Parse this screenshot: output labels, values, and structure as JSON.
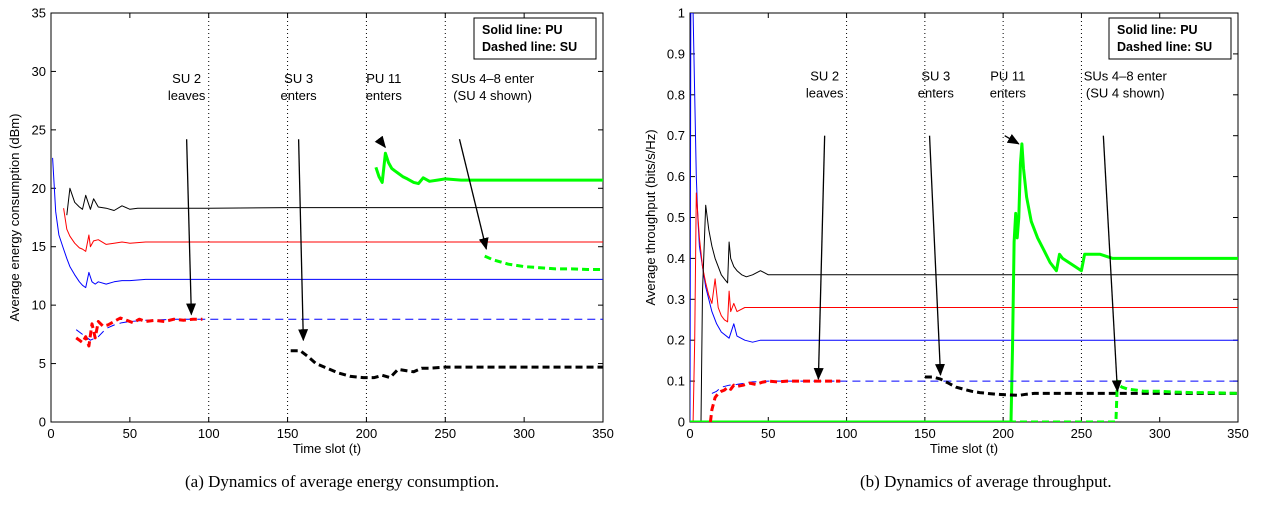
{
  "chart_data": [
    {
      "type": "line",
      "caption": "(a) Dynamics of average energy consumption.",
      "xlabel": "Time slot (t)",
      "ylabel": "Average energy consumption (dBm)",
      "xlim": [
        0,
        350
      ],
      "ylim": [
        0,
        35
      ],
      "xticks": [
        "0",
        "50",
        "100",
        "150",
        "200",
        "250",
        "300",
        "350"
      ],
      "yticks": [
        "0",
        "5",
        "10",
        "15",
        "20",
        "25",
        "30",
        "35"
      ],
      "grid": false,
      "legend": {
        "lines": [
          "Solid line: PU",
          "Dashed line: SU"
        ],
        "position": "top-right"
      },
      "event_lines_x": [
        100,
        150,
        200,
        250
      ],
      "annotations": [
        {
          "lines": [
            "SU 2",
            "leaves"
          ],
          "text_at": [
            86,
            29
          ],
          "arrow_from": [
            86,
            24.2
          ],
          "arrow_to": [
            89,
            9.2
          ]
        },
        {
          "lines": [
            "SU 3",
            "enters"
          ],
          "text_at": [
            157,
            29
          ],
          "arrow_from": [
            157,
            24.2
          ],
          "arrow_to": [
            160,
            7.0
          ]
        },
        {
          "lines": [
            "PU 11",
            "enters"
          ],
          "text_at": [
            211,
            29
          ],
          "arrow_from": [
            208,
            24.2
          ],
          "arrow_to": [
            212,
            23.5
          ]
        },
        {
          "lines": [
            "SUs 4–8 enter",
            "(SU 4 shown)"
          ],
          "text_at": [
            280,
            29
          ],
          "arrow_from": [
            259,
            24.2
          ],
          "arrow_to": [
            276,
            14.8
          ]
        }
      ],
      "series": [
        {
          "color": "#000000",
          "dashed": false,
          "width": 1,
          "x": [
            10,
            12,
            15,
            18,
            20,
            22,
            25,
            27,
            30,
            35,
            40,
            45,
            50,
            55,
            60,
            80,
            100,
            150,
            200,
            250,
            300,
            350
          ],
          "y": [
            17.7,
            20.0,
            18.8,
            18.4,
            18.2,
            19.4,
            18.2,
            19.1,
            18.4,
            18.3,
            18.1,
            18.5,
            18.2,
            18.3,
            18.3,
            18.3,
            18.3,
            18.35,
            18.35,
            18.35,
            18.35,
            18.35
          ]
        },
        {
          "color": "#ff0000",
          "dashed": false,
          "width": 1,
          "x": [
            8,
            10,
            12,
            15,
            18,
            20,
            22,
            24,
            25,
            27,
            30,
            35,
            40,
            45,
            50,
            60,
            80,
            100,
            150,
            200,
            250,
            300,
            350
          ],
          "y": [
            18.3,
            16.5,
            15.9,
            15.3,
            14.9,
            14.8,
            14.6,
            16.0,
            15.0,
            15.5,
            15.6,
            15.2,
            15.3,
            15.4,
            15.3,
            15.4,
            15.4,
            15.4,
            15.4,
            15.4,
            15.4,
            15.4,
            15.4
          ]
        },
        {
          "color": "#0000ff",
          "dashed": false,
          "width": 1,
          "x": [
            1,
            3,
            5,
            8,
            10,
            12,
            15,
            18,
            20,
            22,
            24,
            26,
            28,
            30,
            35,
            40,
            45,
            50,
            60,
            80,
            100,
            150,
            200,
            250,
            300,
            350
          ],
          "y": [
            22.6,
            18.0,
            16.0,
            14.8,
            14.0,
            13.3,
            12.6,
            12.0,
            11.7,
            11.5,
            12.8,
            12.0,
            11.8,
            12.0,
            11.8,
            12.0,
            12.1,
            12.1,
            12.2,
            12.2,
            12.2,
            12.2,
            12.2,
            12.2,
            12.2,
            12.2
          ]
        },
        {
          "color": "#0000ff",
          "dashed": true,
          "width": 1,
          "x": [
            16,
            20,
            25,
            30,
            35,
            40,
            45,
            50,
            60,
            70,
            80,
            90,
            100,
            150,
            200,
            250,
            300,
            350
          ],
          "y": [
            7.9,
            7.5,
            7.0,
            7.3,
            8.0,
            8.3,
            8.5,
            8.6,
            8.7,
            8.75,
            8.8,
            8.8,
            8.8,
            8.8,
            8.8,
            8.8,
            8.8,
            8.8
          ]
        },
        {
          "color": "#ff0000",
          "dashed": true,
          "width": 3,
          "x": [
            16,
            18,
            20,
            22,
            24,
            26,
            28,
            30,
            33,
            36,
            40,
            44,
            48,
            52,
            56,
            60,
            66,
            72,
            78,
            84,
            90,
            96
          ],
          "y": [
            7.2,
            7.0,
            6.8,
            7.3,
            6.5,
            8.4,
            7.2,
            8.6,
            8.2,
            8.3,
            8.6,
            8.9,
            8.7,
            8.5,
            8.8,
            8.6,
            8.7,
            8.6,
            8.8,
            8.7,
            8.8,
            8.8
          ]
        },
        {
          "color": "#000000",
          "dashed": true,
          "width": 3,
          "x": [
            152,
            158,
            163,
            168,
            175,
            182,
            190,
            198,
            205,
            210,
            215,
            220,
            225,
            230,
            235,
            240,
            250,
            260,
            280,
            300,
            320,
            350
          ],
          "y": [
            6.1,
            6.1,
            5.6,
            5.0,
            4.6,
            4.2,
            3.9,
            3.8,
            3.8,
            4.0,
            3.8,
            4.5,
            4.4,
            4.3,
            4.6,
            4.6,
            4.7,
            4.7,
            4.7,
            4.7,
            4.7,
            4.7
          ]
        },
        {
          "color": "#00ff00",
          "dashed": false,
          "width": 3,
          "x": [
            206,
            208,
            210,
            212,
            214,
            216,
            218,
            220,
            223,
            226,
            230,
            233,
            236,
            240,
            245,
            250,
            260,
            270,
            280,
            300,
            320,
            350
          ],
          "y": [
            21.8,
            21.0,
            20.5,
            23.0,
            22.2,
            21.7,
            21.5,
            21.3,
            21.0,
            20.8,
            20.5,
            20.4,
            20.9,
            20.6,
            20.7,
            20.8,
            20.7,
            20.7,
            20.7,
            20.7,
            20.7,
            20.7
          ]
        },
        {
          "color": "#00ff00",
          "dashed": true,
          "width": 3,
          "x": [
            275,
            280,
            285,
            290,
            295,
            300,
            310,
            320,
            330,
            340,
            350
          ],
          "y": [
            14.2,
            13.9,
            13.7,
            13.5,
            13.4,
            13.3,
            13.2,
            13.1,
            13.1,
            13.05,
            13.05
          ]
        }
      ]
    },
    {
      "type": "line",
      "caption": "(b) Dynamics of average throughput.",
      "xlabel": "Time slot (t)",
      "ylabel": "Average throughput (bits/s/Hz)",
      "xlim": [
        0,
        350
      ],
      "ylim": [
        0,
        1
      ],
      "xticks": [
        "0",
        "50",
        "100",
        "150",
        "200",
        "250",
        "300",
        "350"
      ],
      "yticks": [
        "0",
        "0.1",
        "0.2",
        "0.3",
        "0.4",
        "0.5",
        "0.6",
        "0.7",
        "0.8",
        "0.9",
        "1"
      ],
      "grid": false,
      "legend": {
        "lines": [
          "Solid line: PU",
          "Dashed line: SU"
        ],
        "position": "top-right"
      },
      "event_lines_x": [
        100,
        150,
        200,
        250
      ],
      "annotations": [
        {
          "lines": [
            "SU 2",
            "leaves"
          ],
          "text_at": [
            86,
            0.835
          ],
          "arrow_from": [
            86,
            0.7
          ],
          "arrow_to": [
            82,
            0.105
          ]
        },
        {
          "lines": [
            "SU 3",
            "enters"
          ],
          "text_at": [
            157,
            0.835
          ],
          "arrow_from": [
            153,
            0.7
          ],
          "arrow_to": [
            160,
            0.115
          ]
        },
        {
          "lines": [
            "PU 11",
            "enters"
          ],
          "text_at": [
            203,
            0.835
          ],
          "arrow_from": [
            201,
            0.7
          ],
          "arrow_to": [
            210,
            0.68
          ]
        },
        {
          "lines": [
            "SUs 4–8 enter",
            "(SU 4 shown)"
          ],
          "text_at": [
            278,
            0.835
          ],
          "arrow_from": [
            264,
            0.7
          ],
          "arrow_to": [
            273,
            0.075
          ]
        }
      ],
      "series": [
        {
          "color": "#0000ff",
          "dashed": false,
          "width": 1,
          "x": [
            0,
            0.5,
            2,
            3,
            4,
            5,
            6,
            8,
            10,
            14,
            17,
            20,
            25,
            28,
            30,
            35,
            40,
            45,
            50,
            60,
            80,
            100,
            150,
            200,
            250,
            300,
            350
          ],
          "y": [
            0,
            1.0,
            1.0,
            0.8,
            0.6,
            0.5,
            0.43,
            0.38,
            0.33,
            0.27,
            0.24,
            0.22,
            0.205,
            0.24,
            0.21,
            0.2,
            0.195,
            0.2,
            0.2,
            0.2,
            0.2,
            0.2,
            0.2,
            0.2,
            0.2,
            0.2,
            0.2
          ]
        },
        {
          "color": "#ff0000",
          "dashed": false,
          "width": 1,
          "x": [
            1,
            2,
            3,
            4,
            6,
            8,
            10,
            12,
            14,
            16,
            18,
            20,
            22,
            24,
            25,
            26,
            28,
            30,
            35,
            40,
            50,
            60,
            80,
            100,
            150,
            200,
            250,
            300,
            350
          ],
          "y": [
            0,
            0.0,
            0.2,
            0.56,
            0.45,
            0.38,
            0.34,
            0.31,
            0.29,
            0.35,
            0.28,
            0.26,
            0.25,
            0.245,
            0.32,
            0.27,
            0.29,
            0.27,
            0.28,
            0.28,
            0.28,
            0.28,
            0.28,
            0.28,
            0.28,
            0.28,
            0.28,
            0.28,
            0.28
          ]
        },
        {
          "color": "#000000",
          "dashed": false,
          "width": 1,
          "x": [
            7,
            8,
            10,
            12,
            14,
            16,
            18,
            20,
            22,
            24,
            25,
            26,
            28,
            30,
            33,
            36,
            40,
            45,
            50,
            60,
            80,
            100,
            150,
            200,
            250,
            300,
            350
          ],
          "y": [
            0,
            0.32,
            0.53,
            0.47,
            0.43,
            0.4,
            0.38,
            0.36,
            0.35,
            0.34,
            0.44,
            0.4,
            0.38,
            0.37,
            0.36,
            0.355,
            0.36,
            0.37,
            0.36,
            0.36,
            0.36,
            0.36,
            0.36,
            0.36,
            0.36,
            0.36,
            0.36
          ]
        },
        {
          "color": "#00ff00",
          "dashed": false,
          "width": 3,
          "x": [
            0,
            205,
            206,
            207,
            208,
            209,
            210,
            211,
            212,
            213,
            215,
            218,
            222,
            226,
            230,
            234,
            236,
            238,
            242,
            246,
            250,
            252,
            256,
            262,
            270,
            280,
            300,
            320,
            350
          ],
          "y": [
            0,
            0,
            0.18,
            0.44,
            0.51,
            0.45,
            0.5,
            0.63,
            0.68,
            0.62,
            0.55,
            0.49,
            0.45,
            0.42,
            0.39,
            0.37,
            0.41,
            0.4,
            0.39,
            0.38,
            0.37,
            0.41,
            0.41,
            0.41,
            0.4,
            0.4,
            0.4,
            0.4,
            0.4
          ]
        },
        {
          "color": "#0000ff",
          "dashed": true,
          "width": 1,
          "x": [
            14,
            17,
            20,
            25,
            30,
            35,
            40,
            50,
            60,
            80,
            100,
            150,
            200,
            250,
            300,
            350
          ],
          "y": [
            0.07,
            0.075,
            0.085,
            0.09,
            0.092,
            0.095,
            0.098,
            0.1,
            0.1,
            0.1,
            0.1,
            0.1,
            0.1,
            0.1,
            0.1,
            0.1
          ]
        },
        {
          "color": "#ff0000",
          "dashed": true,
          "width": 3,
          "x": [
            13,
            14,
            16,
            18,
            20,
            22,
            24,
            26,
            28,
            30,
            34,
            38,
            42,
            46,
            50,
            56,
            62,
            70,
            78,
            86,
            96
          ],
          "y": [
            0,
            0.03,
            0.06,
            0.07,
            0.075,
            0.078,
            0.085,
            0.08,
            0.09,
            0.087,
            0.09,
            0.095,
            0.092,
            0.097,
            0.1,
            0.098,
            0.1,
            0.1,
            0.1,
            0.1,
            0.1
          ]
        },
        {
          "color": "#000000",
          "dashed": true,
          "width": 3,
          "x": [
            150,
            155,
            160,
            165,
            170,
            175,
            180,
            185,
            190,
            195,
            200,
            205,
            210,
            215,
            220,
            225,
            235,
            250,
            270,
            300,
            350
          ],
          "y": [
            0.11,
            0.11,
            0.105,
            0.095,
            0.085,
            0.08,
            0.075,
            0.072,
            0.07,
            0.068,
            0.067,
            0.066,
            0.065,
            0.068,
            0.07,
            0.07,
            0.07,
            0.07,
            0.07,
            0.07,
            0.07
          ]
        },
        {
          "color": "#00ff00",
          "dashed": true,
          "width": 3,
          "x": [
            0,
            272,
            273,
            274,
            276,
            280,
            285,
            290,
            300,
            310,
            320,
            330,
            340,
            350
          ],
          "y": [
            0,
            0,
            0.1,
            0.09,
            0.085,
            0.08,
            0.078,
            0.075,
            0.075,
            0.073,
            0.072,
            0.072,
            0.071,
            0.07
          ]
        }
      ]
    }
  ]
}
